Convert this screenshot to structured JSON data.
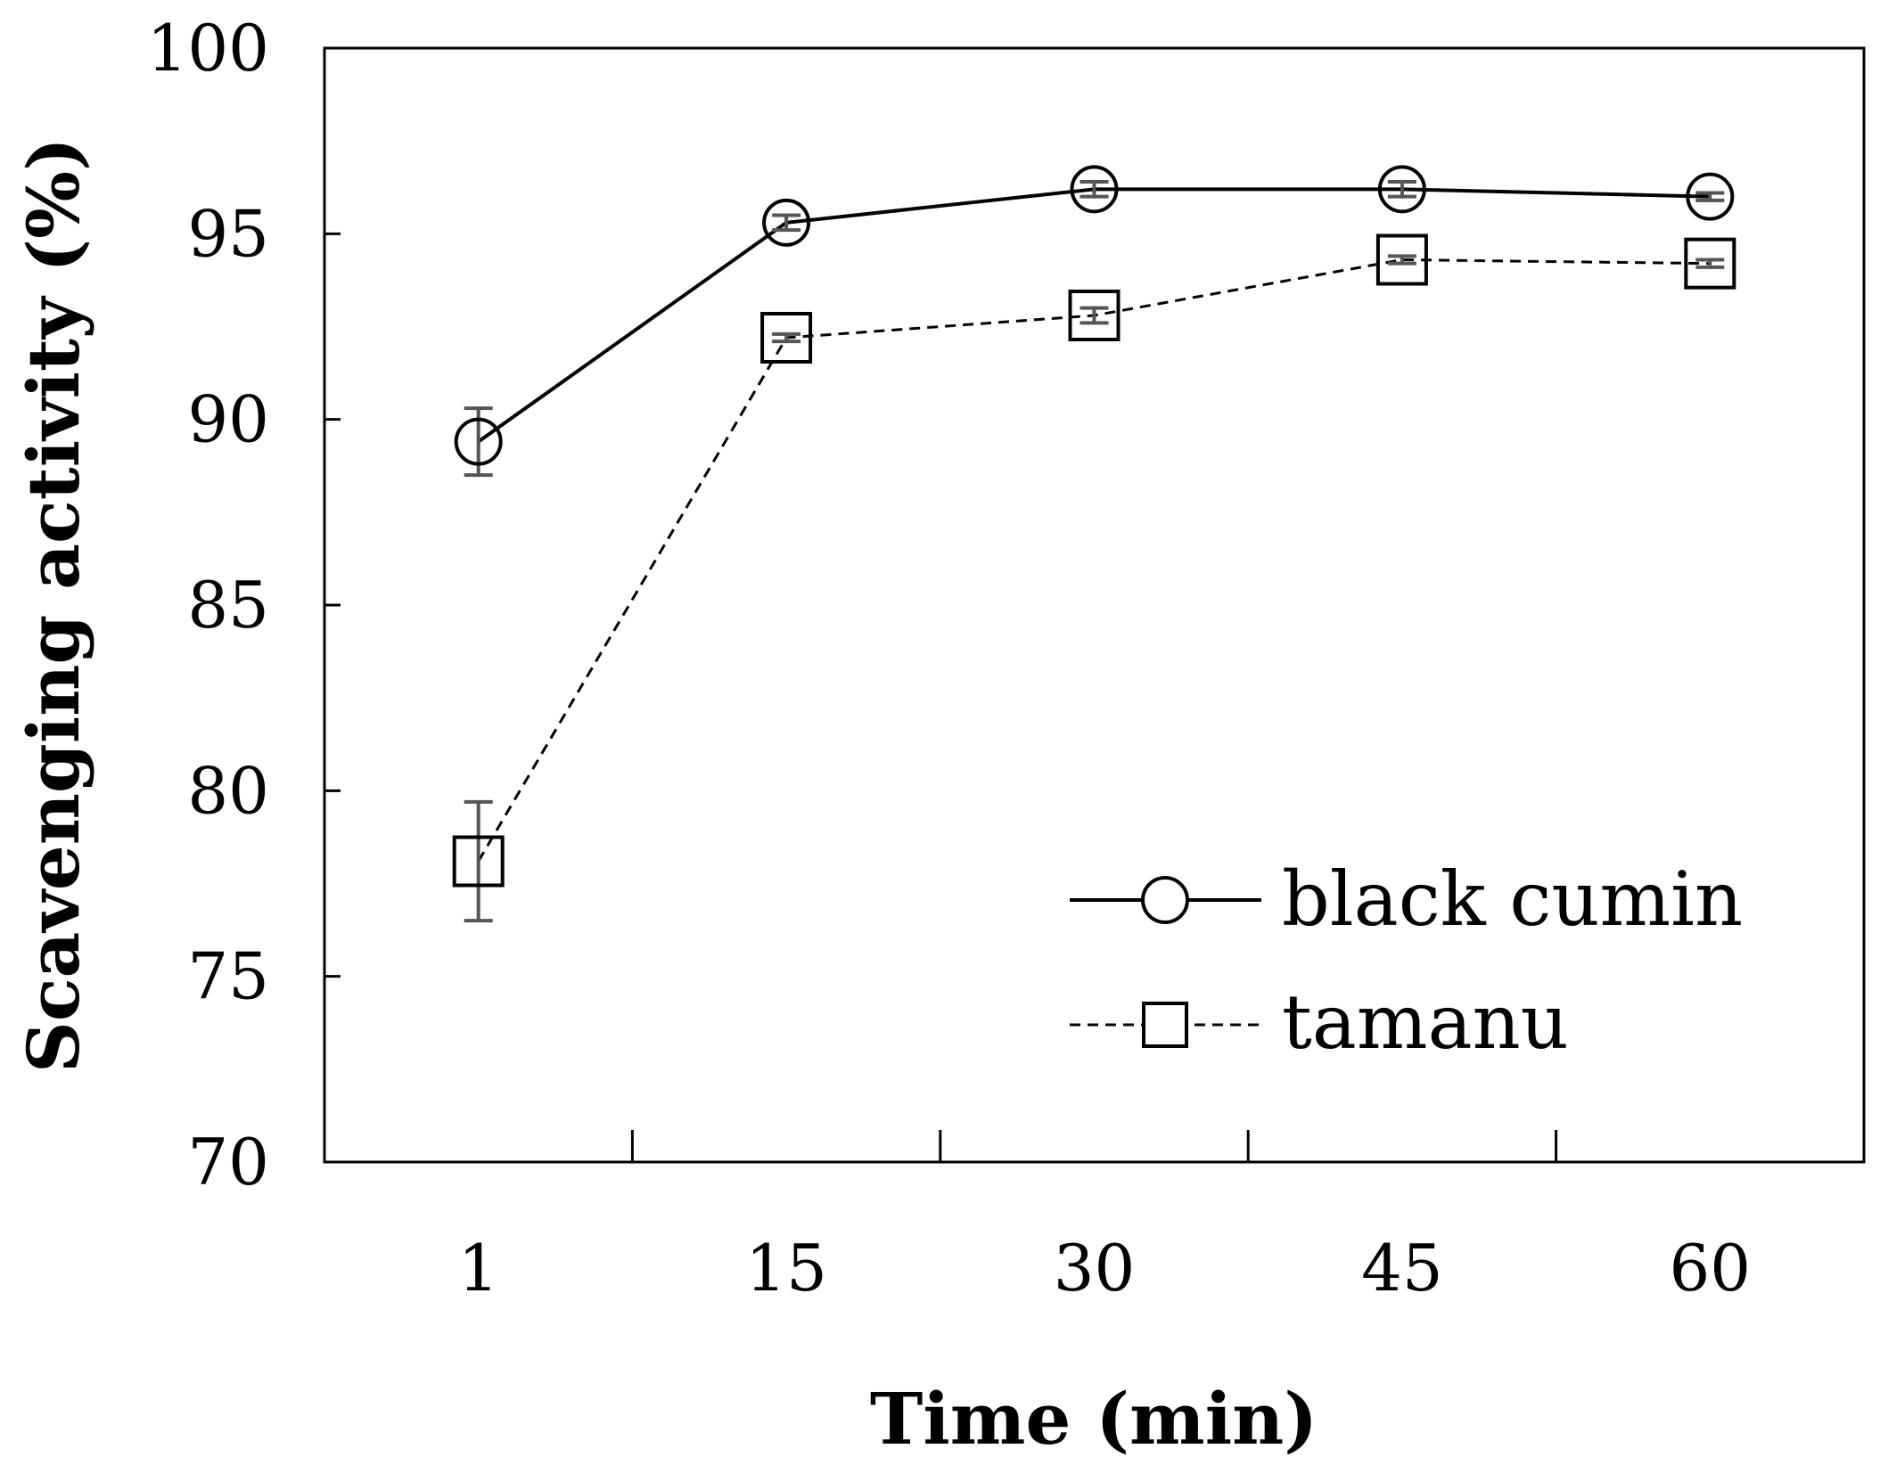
{
  "chart_data": {
    "type": "line",
    "title": "",
    "xlabel": "Time (min)",
    "ylabel": "Scavenging activity (%)",
    "categories": [
      "1",
      "15",
      "30",
      "45",
      "60"
    ],
    "ylim": [
      70,
      100
    ],
    "yticks": [
      70,
      75,
      80,
      85,
      90,
      95,
      100
    ],
    "grid": false,
    "legend": "bottom-right",
    "series": [
      {
        "name": "black cumin",
        "marker": "circle",
        "line": "solid",
        "values": [
          89.4,
          95.3,
          96.2,
          96.2,
          96.0
        ],
        "errors": [
          0.9,
          0.2,
          0.2,
          0.2,
          0.1
        ]
      },
      {
        "name": "tamanu",
        "marker": "square",
        "line": "dashed",
        "values": [
          78.1,
          92.2,
          92.8,
          94.3,
          94.2
        ],
        "errors": [
          1.6,
          0.1,
          0.2,
          0.1,
          0.1
        ]
      }
    ],
    "colors": {
      "line": "#000000",
      "error_bar": "#555555"
    }
  }
}
